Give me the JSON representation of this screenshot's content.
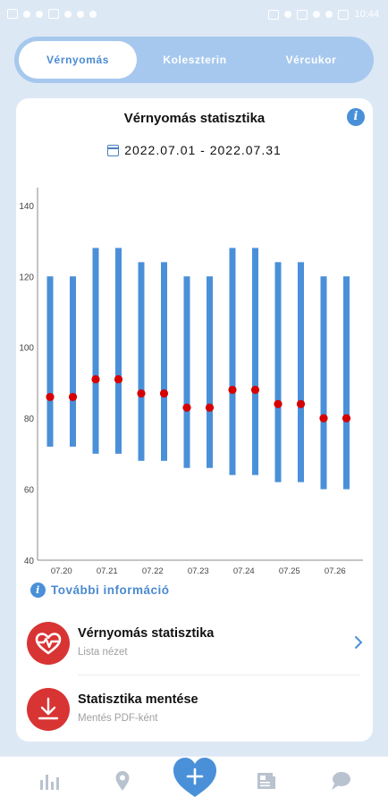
{
  "status_bar": {
    "time": "10:44",
    "left_icons": [
      "sim-card-icon",
      "signal-icon",
      "wifi-icon",
      "network-speed-icon",
      "sync-icon",
      "alarm-icon",
      "download-icon"
    ],
    "right_icons": [
      "nfc-icon",
      "bluetooth-icon",
      "vibrate-icon",
      "hotspot-icon",
      "location-icon",
      "battery-icon"
    ]
  },
  "tabs": [
    {
      "label": "Vérnyomás",
      "active": true
    },
    {
      "label": "Koleszterin",
      "active": false
    },
    {
      "label": "Vércukor",
      "active": false
    }
  ],
  "card": {
    "title": "Vérnyomás statisztika",
    "info_icon": "info-icon",
    "date_range": "2022.07.01 - 2022.07.31",
    "date_icon": "calendar-icon"
  },
  "chart_data": {
    "type": "bar",
    "title": "",
    "xlabel": "",
    "ylabel": "",
    "ylim": [
      40,
      145
    ],
    "y_ticks": [
      "40",
      "60",
      "80",
      "100",
      "120",
      "140"
    ],
    "x_tick_labels": [
      "07.20",
      "07.21",
      "07.22",
      "07.23",
      "07.24",
      "07.25",
      "07.26"
    ],
    "grid": false,
    "colors": {
      "range_bar": "#4a90d9",
      "pulse_point": "#d60000"
    },
    "series": [
      {
        "kind": "range",
        "low": [
          72,
          72,
          70,
          70,
          68,
          68,
          66,
          66,
          64,
          64,
          62,
          62,
          60,
          60
        ],
        "high": [
          120,
          120,
          128,
          128,
          124,
          124,
          120,
          120,
          128,
          128,
          124,
          124,
          120,
          120
        ]
      },
      {
        "kind": "point",
        "values": [
          86,
          86,
          91,
          91,
          87,
          87,
          83,
          83,
          88,
          88,
          84,
          84,
          80,
          80
        ]
      }
    ]
  },
  "more_info": {
    "label": "További információ",
    "icon": "info-icon"
  },
  "list": [
    {
      "title": "Vérnyomás statisztika",
      "subtitle": "Lista nézet",
      "icon": "heart-pulse-icon",
      "chevron": "chevron-right-icon"
    },
    {
      "title": "Statisztika mentése",
      "subtitle": "Mentés PDF-ként",
      "icon": "download-icon"
    }
  ],
  "bottom_nav": {
    "items": [
      "bar-chart-icon",
      "location-pin-icon",
      "heart-plus-icon",
      "newspaper-icon",
      "chat-icon"
    ],
    "active_color": "#4a90d9",
    "inactive_color": "#b9c3cf"
  }
}
